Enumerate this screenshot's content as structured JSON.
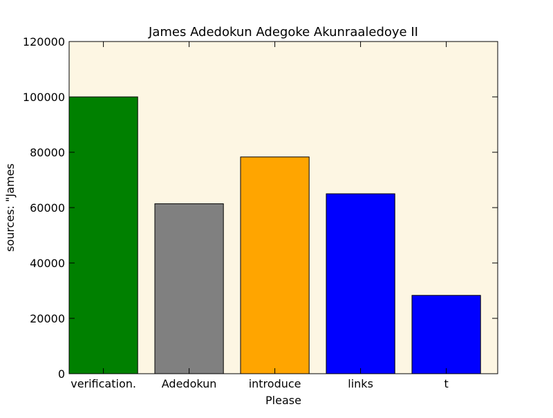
{
  "chart_data": {
    "type": "bar",
    "title": "James Adedokun Adegoke Akunraaledoye II",
    "xlabel": "Please",
    "ylabel": "sources: \"James",
    "categories": [
      "verification.",
      "Adedokun",
      "introduce",
      "links",
      "t"
    ],
    "values": [
      100000,
      61400,
      78300,
      65000,
      28300
    ],
    "bar_colors": [
      "#008000",
      "#808080",
      "#ffa500",
      "#0000ff",
      "#0000ff"
    ],
    "ylim": [
      0,
      120000
    ],
    "yticks": [
      0,
      20000,
      40000,
      60000,
      80000,
      100000,
      120000
    ],
    "ytick_labels": [
      "0",
      "20000",
      "40000",
      "60000",
      "80000",
      "100000",
      "120000"
    ],
    "grid": false,
    "background_color": "#fdf6e3"
  }
}
